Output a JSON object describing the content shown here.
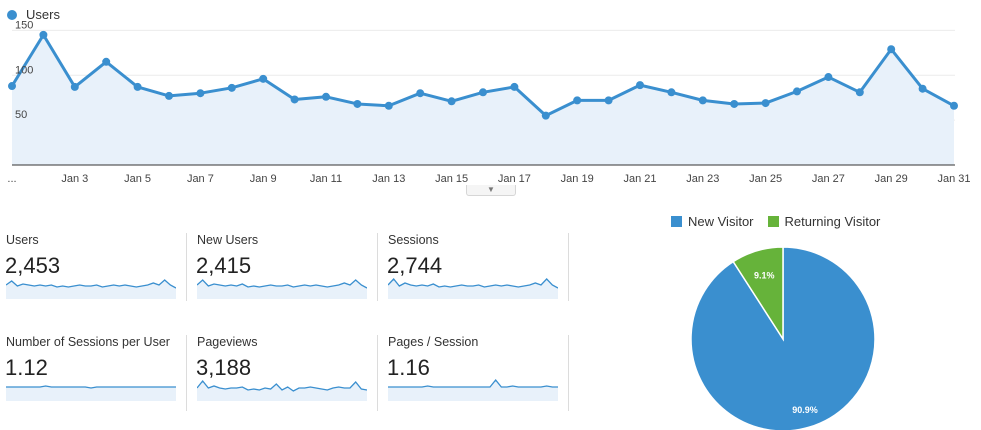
{
  "colors": {
    "primary": "#3a8fcf",
    "fill": "#e8f1fa",
    "returning": "#66b33a"
  },
  "chart_data": [
    {
      "type": "line",
      "series": [
        {
          "name": "Users",
          "values": [
            88,
            145,
            87,
            115,
            87,
            77,
            80,
            86,
            96,
            73,
            76,
            68,
            66,
            80,
            71,
            81,
            87,
            55,
            72,
            72,
            89,
            81,
            72,
            68,
            69,
            82,
            98,
            81,
            129,
            85,
            66
          ]
        }
      ],
      "x": [
        "Jan 1",
        "Jan 2",
        "Jan 3",
        "Jan 4",
        "Jan 5",
        "Jan 6",
        "Jan 7",
        "Jan 8",
        "Jan 9",
        "Jan 10",
        "Jan 11",
        "Jan 12",
        "Jan 13",
        "Jan 14",
        "Jan 15",
        "Jan 16",
        "Jan 17",
        "Jan 18",
        "Jan 19",
        "Jan 20",
        "Jan 21",
        "Jan 22",
        "Jan 23",
        "Jan 24",
        "Jan 25",
        "Jan 26",
        "Jan 27",
        "Jan 28",
        "Jan 29",
        "Jan 30",
        "Jan 31"
      ],
      "x_tick_labels": [
        "...",
        "Jan 3",
        "Jan 5",
        "Jan 7",
        "Jan 9",
        "Jan 11",
        "Jan 13",
        "Jan 15",
        "Jan 17",
        "Jan 19",
        "Jan 21",
        "Jan 23",
        "Jan 25",
        "Jan 27",
        "Jan 29",
        "Jan 31"
      ],
      "y_tick_labels": [
        "150",
        "100",
        "50"
      ],
      "ylim": [
        0,
        160
      ],
      "grid": true,
      "legend": "top-left"
    },
    {
      "type": "pie",
      "categories": [
        "New Visitor",
        "Returning Visitor"
      ],
      "values": [
        90.9,
        9.1
      ],
      "slice_labels": [
        "90.9%",
        "9.1%"
      ],
      "legend": "top"
    }
  ],
  "metrics": [
    {
      "label": "Users",
      "value": "2,453",
      "spark": [
        10,
        14,
        9,
        11,
        10,
        9,
        10,
        9,
        10,
        8,
        9,
        8,
        9,
        10,
        9,
        9,
        10,
        8,
        9,
        10,
        9,
        10,
        9,
        8,
        9,
        10,
        12,
        10,
        15,
        10,
        7
      ]
    },
    {
      "label": "New Users",
      "value": "2,415",
      "spark": [
        10,
        15,
        9,
        11,
        10,
        9,
        10,
        9,
        11,
        8,
        9,
        8,
        9,
        10,
        9,
        9,
        10,
        8,
        9,
        10,
        9,
        10,
        9,
        8,
        9,
        10,
        12,
        10,
        15,
        10,
        7
      ]
    },
    {
      "label": "Sessions",
      "value": "2,744",
      "spark": [
        10,
        16,
        9,
        12,
        10,
        9,
        10,
        9,
        11,
        8,
        9,
        8,
        9,
        10,
        9,
        9,
        10,
        8,
        9,
        10,
        9,
        10,
        9,
        8,
        9,
        10,
        12,
        10,
        16,
        10,
        7
      ]
    },
    {
      "label": "Number of Sessions per User",
      "value": "1.12",
      "spark": [
        10,
        10,
        10,
        10,
        10,
        10,
        10,
        11,
        10,
        10,
        10,
        10,
        10,
        10,
        10,
        9,
        10,
        10,
        10,
        10,
        10,
        10,
        10,
        10,
        10,
        10,
        10,
        10,
        10,
        10,
        10
      ]
    },
    {
      "label": "Pageviews",
      "value": "3,188",
      "spark": [
        9,
        16,
        9,
        11,
        9,
        8,
        9,
        9,
        10,
        7,
        8,
        7,
        9,
        8,
        13,
        7,
        10,
        6,
        9,
        9,
        10,
        9,
        8,
        7,
        9,
        10,
        9,
        9,
        15,
        8,
        7
      ]
    },
    {
      "label": "Pages / Session",
      "value": "1.16",
      "spark": [
        10,
        10,
        10,
        10,
        10,
        10,
        10,
        11,
        10,
        10,
        10,
        10,
        10,
        10,
        10,
        10,
        10,
        10,
        10,
        17,
        10,
        10,
        11,
        10,
        10,
        10,
        10,
        10,
        11,
        10,
        10
      ]
    }
  ]
}
